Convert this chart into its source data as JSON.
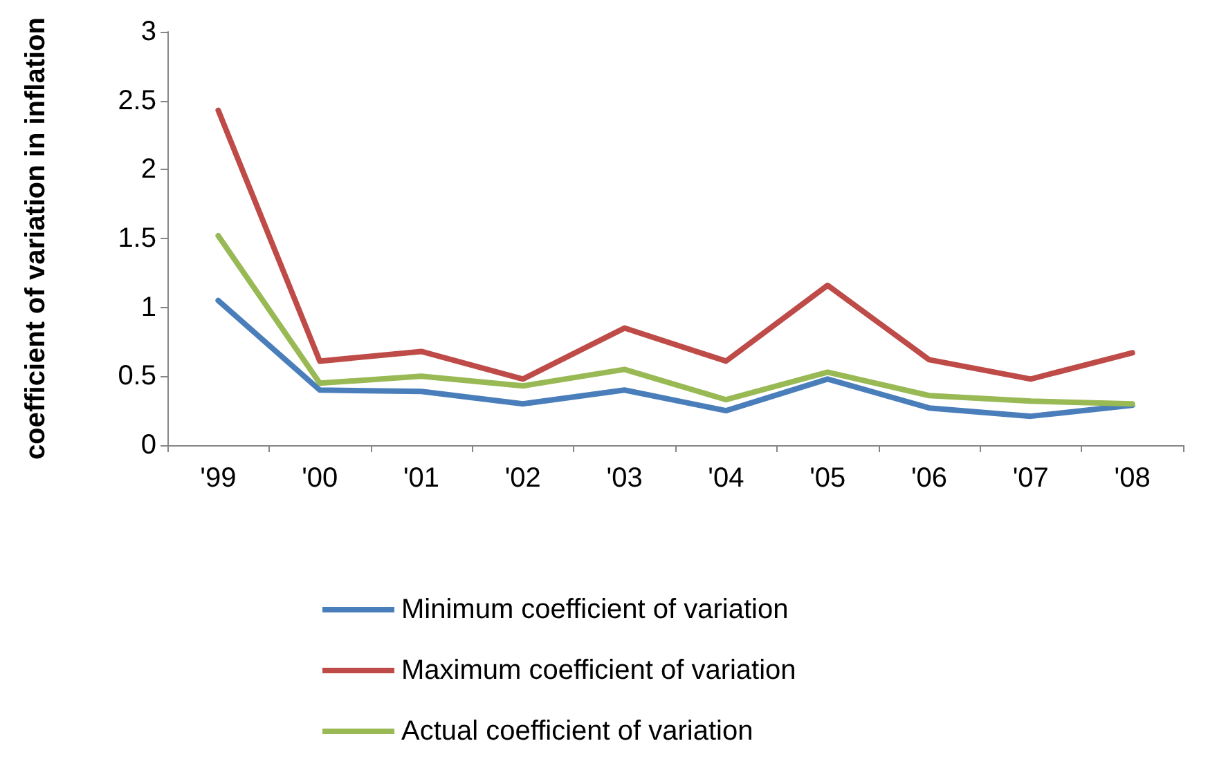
{
  "chart_data": {
    "type": "line",
    "ylabel": "coefficient of variation in inflation",
    "categories": [
      "'99",
      "'00",
      "'01",
      "'02",
      "'03",
      "'04",
      "'05",
      "'06",
      "'07",
      "'08"
    ],
    "series": [
      {
        "name": "Minimum coefficient of variation",
        "color": "#4a7ebb",
        "values": [
          1.05,
          0.4,
          0.39,
          0.3,
          0.4,
          0.25,
          0.48,
          0.27,
          0.21,
          0.29
        ]
      },
      {
        "name": "Maximum coefficient of variation",
        "color": "#be4b48",
        "values": [
          2.43,
          0.61,
          0.68,
          0.48,
          0.85,
          0.61,
          1.16,
          0.62,
          0.48,
          0.67
        ]
      },
      {
        "name": "Actual coefficient of variation",
        "color": "#98b954",
        "values": [
          1.52,
          0.45,
          0.5,
          0.43,
          0.55,
          0.33,
          0.53,
          0.36,
          0.32,
          0.3
        ]
      }
    ],
    "ylim": [
      0,
      3
    ],
    "yticks": [
      0,
      0.5,
      1,
      1.5,
      2,
      2.5,
      3
    ],
    "grid": false,
    "legend": "bottom",
    "marker": "none",
    "line_style": "solid"
  }
}
